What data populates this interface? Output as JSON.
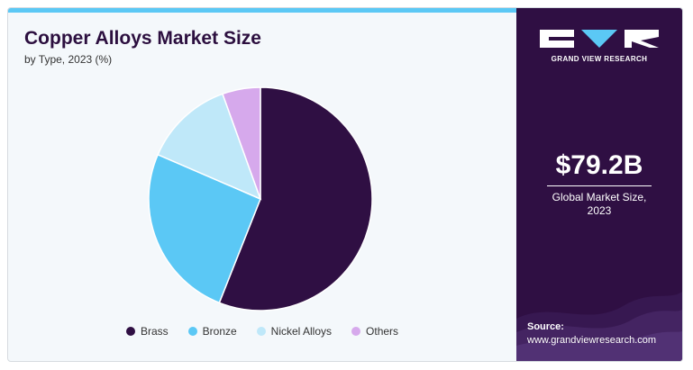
{
  "header": {
    "title": "Copper Alloys Market Size",
    "subtitle": "by Type, 2023 (%)"
  },
  "sidebar": {
    "brand": "GRAND VIEW RESEARCH",
    "market_value": "$79.2B",
    "market_caption_line1": "Global Market Size,",
    "market_caption_line2": "2023",
    "source_label": "Source:",
    "source_url": "www.grandviewresearch.com",
    "background_color": "#2f0f43"
  },
  "chart_data": {
    "type": "pie",
    "title": "Copper Alloys Market Size",
    "subtitle": "by Type, 2023 (%)",
    "legend_position": "bottom",
    "slices": [
      {
        "label": "Brass",
        "value": 56,
        "color": "#2f0f43"
      },
      {
        "label": "Bronze",
        "value": 25.5,
        "color": "#5bc8f5"
      },
      {
        "label": "Nickel Alloys",
        "value": 13,
        "color": "#bfe8f9"
      },
      {
        "label": "Others",
        "value": 5.5,
        "color": "#d6a9ec"
      }
    ]
  }
}
